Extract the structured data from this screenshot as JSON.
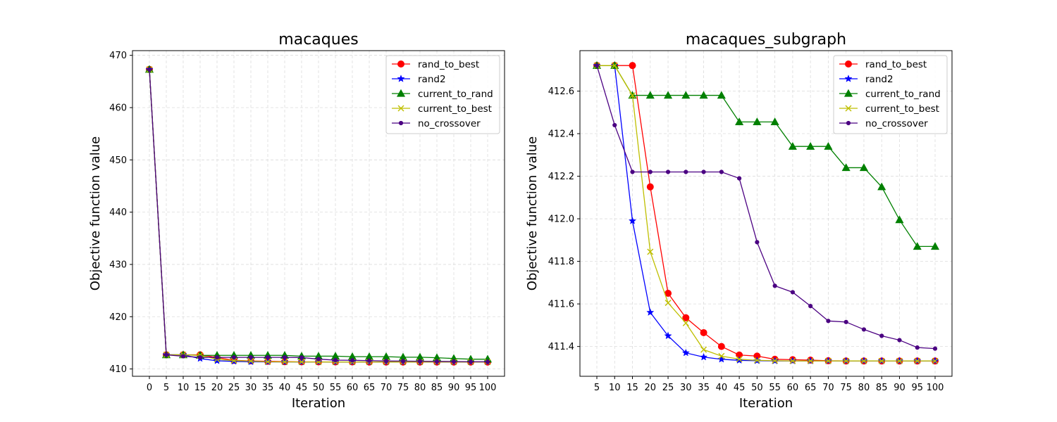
{
  "chart_data": [
    {
      "type": "line",
      "title": "macaques",
      "xlabel": "Iteration",
      "ylabel": "Objective function value",
      "x": [
        0,
        5,
        10,
        15,
        20,
        25,
        30,
        35,
        40,
        45,
        50,
        55,
        60,
        65,
        70,
        75,
        80,
        85,
        90,
        95,
        100
      ],
      "xticks": [
        "0",
        "5",
        "10",
        "15",
        "20",
        "25",
        "30",
        "35",
        "40",
        "45",
        "50",
        "55",
        "60",
        "65",
        "70",
        "75",
        "80",
        "85",
        "90",
        "95",
        "100"
      ],
      "yticks": [
        "410",
        "420",
        "430",
        "440",
        "450",
        "460",
        "470"
      ],
      "xlim": [
        -5,
        105
      ],
      "ylim": [
        408.6,
        470.9
      ],
      "grid": true,
      "legend_position": "top-right",
      "series": [
        {
          "name": "rand_to_best",
          "color": "#ff0000",
          "marker": "circle",
          "values": [
            467.3,
            412.7,
            412.7,
            412.7,
            412.2,
            411.65,
            411.54,
            411.47,
            411.4,
            411.36,
            411.36,
            411.34,
            411.34,
            411.33,
            411.33,
            411.33,
            411.33,
            411.33,
            411.33,
            411.33,
            411.33
          ]
        },
        {
          "name": "rand2",
          "color": "#0000ff",
          "marker": "star",
          "values": [
            467.3,
            412.7,
            412.7,
            411.99,
            411.56,
            411.45,
            411.37,
            411.35,
            411.34,
            411.33,
            411.33,
            411.33,
            411.33,
            411.33,
            411.33,
            411.33,
            411.33,
            411.33,
            411.33,
            411.33,
            411.33
          ]
        },
        {
          "name": "current_to_rand",
          "color": "#008000",
          "marker": "triangle",
          "values": [
            467.3,
            412.7,
            412.7,
            412.6,
            412.6,
            412.6,
            412.6,
            412.6,
            412.6,
            412.45,
            412.45,
            412.45,
            412.35,
            412.35,
            412.35,
            412.25,
            412.25,
            412.15,
            412.0,
            411.87,
            411.87
          ]
        },
        {
          "name": "current_to_best",
          "color": "#bfbf00",
          "marker": "x",
          "values": [
            467.3,
            412.7,
            412.7,
            412.6,
            411.85,
            411.6,
            411.51,
            411.38,
            411.35,
            411.34,
            411.33,
            411.33,
            411.33,
            411.33,
            411.33,
            411.33,
            411.33,
            411.33,
            411.33,
            411.33,
            411.33
          ]
        },
        {
          "name": "no_crossover",
          "color": "#4b0082",
          "marker": "dot",
          "values": [
            467.3,
            412.7,
            412.44,
            412.22,
            412.22,
            412.22,
            412.22,
            412.22,
            412.22,
            412.19,
            411.89,
            411.69,
            411.66,
            411.59,
            411.52,
            411.51,
            411.48,
            411.45,
            411.43,
            411.39,
            411.39
          ]
        }
      ]
    },
    {
      "type": "line",
      "title": "macaques_subgraph",
      "xlabel": "Iteration",
      "ylabel": "Objective function value",
      "x": [
        5,
        10,
        15,
        20,
        25,
        30,
        35,
        40,
        45,
        50,
        55,
        60,
        65,
        70,
        75,
        80,
        85,
        90,
        95,
        100
      ],
      "xticks": [
        "5",
        "10",
        "15",
        "20",
        "25",
        "30",
        "35",
        "40",
        "45",
        "50",
        "55",
        "60",
        "65",
        "70",
        "75",
        "80",
        "85",
        "90",
        "95",
        "100"
      ],
      "yticks": [
        "411.4",
        "411.6",
        "411.8",
        "412.0",
        "412.2",
        "412.4",
        "412.6"
      ],
      "xlim": [
        0.25,
        104.75
      ],
      "ylim": [
        411.26,
        412.79
      ],
      "grid": true,
      "legend_position": "top-right",
      "series": [
        {
          "name": "rand_to_best",
          "color": "#ff0000",
          "marker": "circle",
          "values": [
            412.72,
            412.72,
            412.72,
            412.15,
            411.65,
            411.535,
            411.465,
            411.4,
            411.36,
            411.355,
            411.34,
            411.338,
            411.336,
            411.333,
            411.332,
            411.332,
            411.332,
            411.332,
            411.332,
            411.332
          ]
        },
        {
          "name": "rand2",
          "color": "#0000ff",
          "marker": "star",
          "values": [
            412.72,
            412.72,
            411.99,
            411.56,
            411.45,
            411.37,
            411.35,
            411.34,
            411.335,
            411.333,
            411.332,
            411.332,
            411.332,
            411.332,
            411.332,
            411.332,
            411.332,
            411.332,
            411.332,
            411.332
          ]
        },
        {
          "name": "current_to_rand",
          "color": "#008000",
          "marker": "triangle",
          "values": [
            412.72,
            412.72,
            412.58,
            412.58,
            412.58,
            412.58,
            412.58,
            412.58,
            412.455,
            412.455,
            412.455,
            412.34,
            412.34,
            412.34,
            412.24,
            412.24,
            412.15,
            411.995,
            411.87,
            411.87
          ]
        },
        {
          "name": "current_to_best",
          "color": "#bfbf00",
          "marker": "x",
          "values": [
            412.72,
            412.72,
            412.58,
            411.845,
            411.605,
            411.51,
            411.385,
            411.355,
            411.34,
            411.335,
            411.333,
            411.332,
            411.332,
            411.332,
            411.332,
            411.332,
            411.332,
            411.332,
            411.332,
            411.332
          ]
        },
        {
          "name": "no_crossover",
          "color": "#4b0082",
          "marker": "dot",
          "values": [
            412.72,
            412.44,
            412.22,
            412.22,
            412.22,
            412.22,
            412.22,
            412.22,
            412.19,
            411.89,
            411.685,
            411.655,
            411.59,
            411.52,
            411.515,
            411.48,
            411.45,
            411.43,
            411.395,
            411.39
          ]
        }
      ]
    }
  ]
}
